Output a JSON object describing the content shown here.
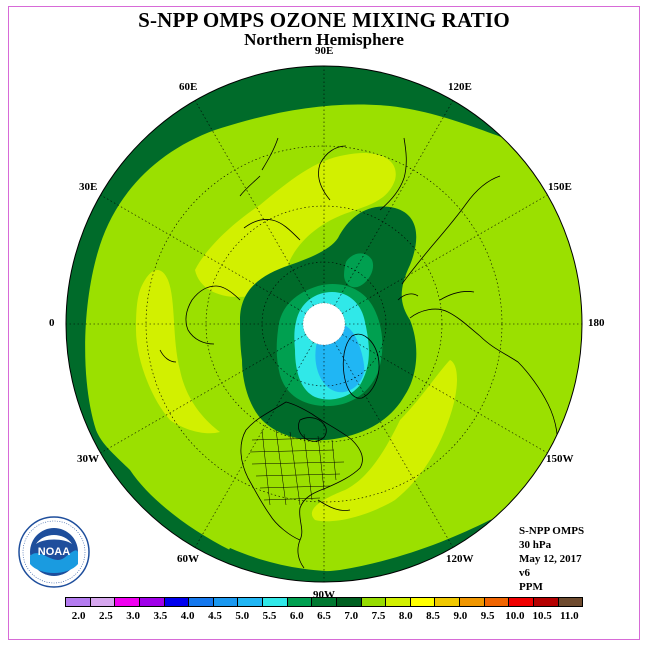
{
  "header": {
    "title": "S-NPP OMPS OZONE MIXING RATIO",
    "subtitle": "Northern Hemisphere"
  },
  "map": {
    "projection": "north polar stereographic",
    "longitude_labels": [
      {
        "text": "90E",
        "lon": 90
      },
      {
        "text": "120E",
        "lon": 120
      },
      {
        "text": "60E",
        "lon": 60
      },
      {
        "text": "150E",
        "lon": 150
      },
      {
        "text": "30E",
        "lon": 30
      },
      {
        "text": "180",
        "lon": 180
      },
      {
        "text": "0",
        "lon": 0
      },
      {
        "text": "150W",
        "lon": -150
      },
      {
        "text": "30W",
        "lon": -30
      },
      {
        "text": "120W",
        "lon": -120
      },
      {
        "text": "60W",
        "lon": -60
      },
      {
        "text": "90W",
        "lon": -90
      }
    ],
    "field_levels_ppm": [
      6.5,
      7.0,
      7.5,
      8.0,
      5.5,
      6.0
    ]
  },
  "info": {
    "instrument": "S-NPP OMPS",
    "level": "30 hPa",
    "date": "May 12, 2017",
    "version": "v6",
    "units": "PPM"
  },
  "colorbar": {
    "colors": [
      "#b47cf0",
      "#d6a7ee",
      "#f000f0",
      "#a000e8",
      "#0000ee",
      "#1478ee",
      "#1a98f0",
      "#20b6f4",
      "#30e8e8",
      "#00a050",
      "#007830",
      "#006020",
      "#96dc00",
      "#d2f000",
      "#ffff00",
      "#f0c800",
      "#f09600",
      "#f06400",
      "#f00000",
      "#b40000",
      "#6e4a2e"
    ],
    "tick_labels": [
      "2.0",
      "2.5",
      "3.0",
      "3.5",
      "4.0",
      "4.5",
      "5.0",
      "5.5",
      "6.0",
      "6.5",
      "7.0",
      "7.5",
      "8.0",
      "8.5",
      "9.0",
      "9.5",
      "10.0",
      "10.5",
      "11.0"
    ]
  },
  "logo": {
    "text": "NOAA",
    "ring_text": "NATIONAL OCEANIC AND ATMOSPHERIC ADMINISTRATION · U.S. DEPARTMENT OF COMMERCE"
  }
}
